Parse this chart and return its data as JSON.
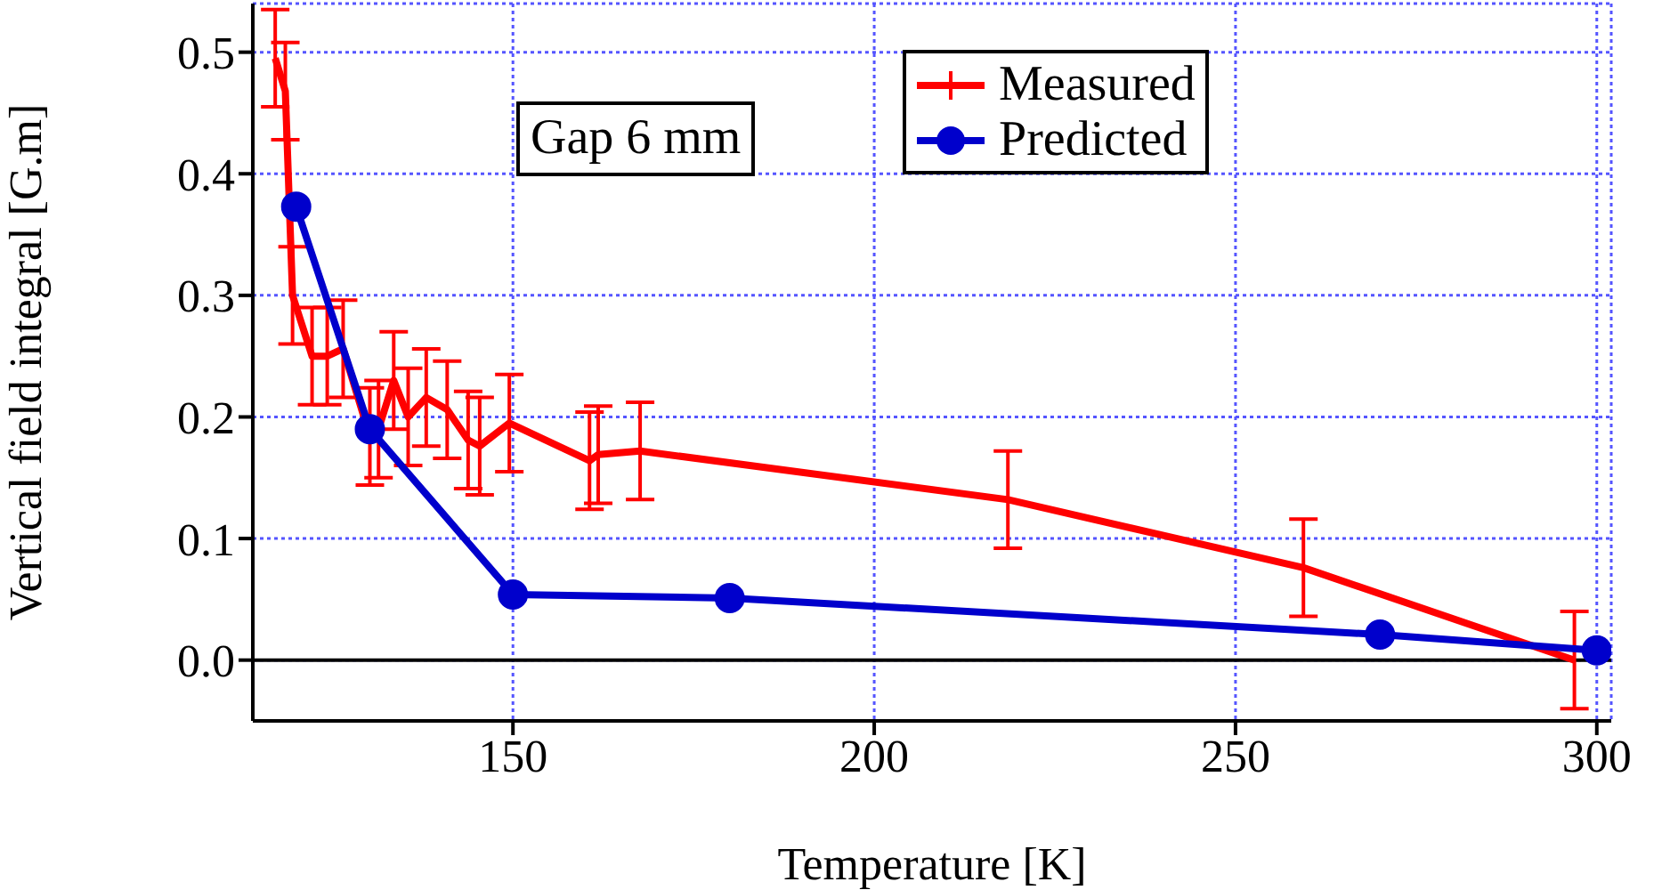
{
  "chart_data": {
    "type": "line",
    "xlabel": "Temperature [K]",
    "ylabel": "Vertical field integral [G.m]",
    "annotations": [
      "Gap 6 mm"
    ],
    "series": [
      {
        "name": "Measured",
        "color": "#ff0000",
        "marker": "none",
        "x": [
          117.1,
          118.5,
          119.5,
          122.2,
          124.3,
          126.5,
          130.2,
          131.4,
          133.5,
          135.5,
          138,
          140.9,
          143.8,
          145.4,
          149.5,
          160.6,
          161.8,
          167.6,
          218.5,
          259.4,
          296.9
        ],
        "values": [
          0.495,
          0.468,
          0.3,
          0.25,
          0.25,
          0.256,
          0.184,
          0.19,
          0.23,
          0.2,
          0.216,
          0.206,
          0.181,
          0.176,
          0.195,
          0.164,
          0.169,
          0.172,
          0.132,
          0.076,
          0.0
        ],
        "errors": [
          0.04,
          0.04,
          0.04,
          0.04,
          0.04,
          0.04,
          0.04,
          0.04,
          0.04,
          0.04,
          0.04,
          0.04,
          0.04,
          0.04,
          0.04,
          0.04,
          0.04,
          0.04,
          0.04,
          0.04,
          0.04
        ]
      },
      {
        "name": "Predicted",
        "color": "#0000cc",
        "marker": "circle",
        "x": [
          120,
          130.2,
          150,
          180,
          270,
          300
        ],
        "values": [
          0.373,
          0.19,
          0.054,
          0.051,
          0.021,
          0.008
        ]
      }
    ],
    "xlim": [
      114,
      302
    ],
    "xticks": [
      150,
      200,
      250,
      300
    ],
    "ylim": [
      -0.05,
      0.54
    ],
    "yticks": [
      {
        "value": 0,
        "label": "0.0"
      },
      0.1,
      0.2,
      0.3,
      0.4,
      0.5
    ],
    "ref_lines": [
      {
        "axis": "y",
        "value": 0,
        "color": "#000000"
      }
    ],
    "grid": true,
    "legend": "top right"
  }
}
